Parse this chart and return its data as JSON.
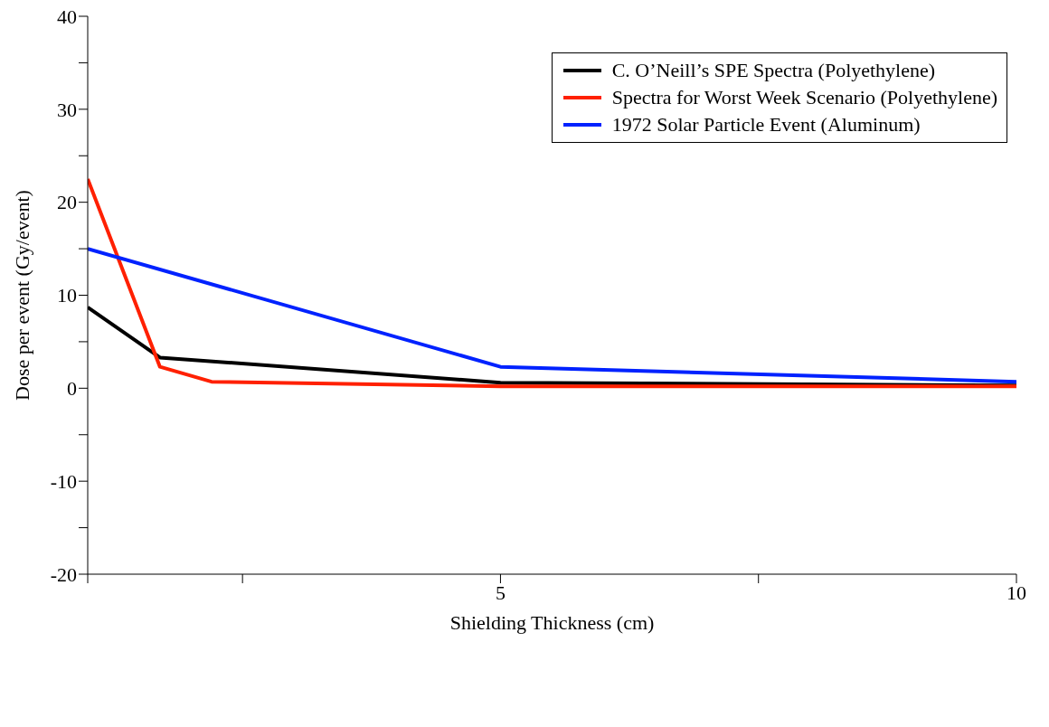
{
  "chart_data": {
    "type": "line",
    "xlabel": "Shielding Thickness (cm)",
    "ylabel": "Dose per event (Gy/event)",
    "xlim": [
      1,
      10
    ],
    "xticks": [
      {
        "value": 1,
        "label": null
      },
      {
        "value": 2.5,
        "label": null
      },
      5,
      {
        "value": 7.5,
        "label": null
      },
      10
    ],
    "ylim": [
      -20,
      40
    ],
    "yticks": [
      -20,
      {
        "value": -15,
        "label": null
      },
      -10,
      {
        "value": -5,
        "label": null
      },
      0,
      {
        "value": 5,
        "label": null
      },
      10,
      {
        "value": 15,
        "label": null
      },
      20,
      {
        "value": 25,
        "label": null
      },
      30,
      {
        "value": 35,
        "label": null
      },
      40
    ],
    "legend": "top right",
    "marker": "none",
    "line_style": "solid",
    "series": [
      {
        "name": "C. O’Neill’s SPE Spectra (Polyethylene)",
        "color": "#000000",
        "x": [
          1,
          1.7,
          5,
          10
        ],
        "values": [
          8.7,
          3.3,
          0.6,
          0.3
        ]
      },
      {
        "name": "Spectra for Worst Week Scenario (Polyethylene)",
        "color": "#ff2000",
        "x": [
          1,
          1.7,
          2.2,
          5,
          10
        ],
        "values": [
          22.5,
          2.3,
          0.7,
          0.2,
          0.2
        ]
      },
      {
        "name": "1972 Solar Particle Event (Aluminum)",
        "color": "#0022ff",
        "x": [
          1,
          5,
          10
        ],
        "values": [
          15,
          2.3,
          0.7
        ]
      }
    ]
  }
}
